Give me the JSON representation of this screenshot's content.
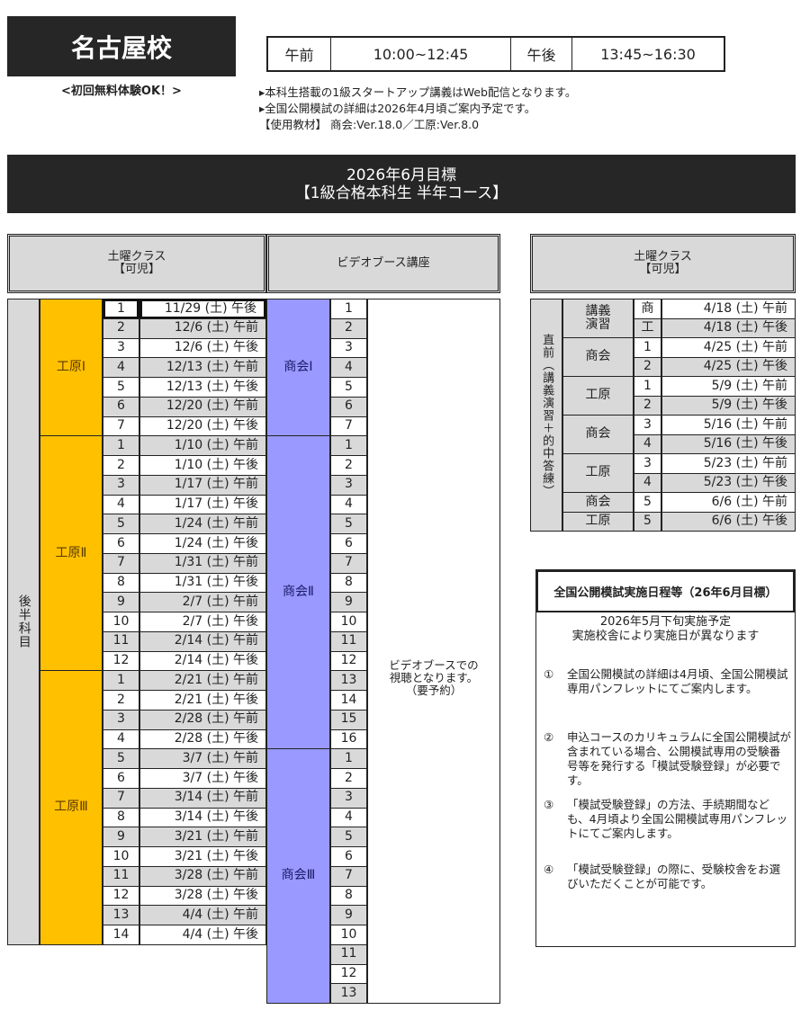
{
  "header": {
    "school": "名古屋校",
    "trial": "<初回無料体験OK！>",
    "times": {
      "am_label": "午前",
      "am": "10:00~12:45",
      "pm_label": "午後",
      "pm": "13:45~16:30"
    },
    "notes": [
      "▸本科生搭載の1級スタートアップ講義はWeb配信となります。",
      "▸全国公開模試の詳細は2026年4月頃ご案内予定です。",
      "【使用教材】 商会:Ver.18.0／工原:Ver.8.0"
    ]
  },
  "banner": {
    "line1": "2026年6月目標",
    "line2": "【1級合格本科生  半年コース】"
  },
  "left_table": {
    "header_class": "土曜クラス\n【可児】",
    "header_video": "ビデオブース講座",
    "period": "後半科目",
    "video_note": "ビデオブースでの\n視聴となります。\n（要予約）",
    "groups": [
      {
        "subject": "工原Ⅰ",
        "rows": [
          [
            "1",
            "11/29 (土) 午後"
          ],
          [
            "2",
            "12/6 (土) 午前"
          ],
          [
            "3",
            "12/6 (土) 午後"
          ],
          [
            "4",
            "12/13 (土) 午前"
          ],
          [
            "5",
            "12/13 (土) 午後"
          ],
          [
            "6",
            "12/20 (土) 午前"
          ],
          [
            "7",
            "12/20 (土) 午後"
          ]
        ]
      },
      {
        "subject": "工原Ⅱ",
        "rows": [
          [
            "1",
            "1/10 (土) 午前"
          ],
          [
            "2",
            "1/10 (土) 午後"
          ],
          [
            "3",
            "1/17 (土) 午前"
          ],
          [
            "4",
            "1/17 (土) 午後"
          ],
          [
            "5",
            "1/24 (土) 午前"
          ],
          [
            "6",
            "1/24 (土) 午後"
          ],
          [
            "7",
            "1/31 (土) 午前"
          ],
          [
            "8",
            "1/31 (土) 午後"
          ],
          [
            "9",
            "2/7 (土) 午前"
          ],
          [
            "10",
            "2/7 (土) 午後"
          ],
          [
            "11",
            "2/14 (土) 午前"
          ],
          [
            "12",
            "2/14 (土) 午後"
          ]
        ]
      },
      {
        "subject": "工原Ⅲ",
        "rows": [
          [
            "1",
            "2/21 (土) 午前"
          ],
          [
            "2",
            "2/21 (土) 午後"
          ],
          [
            "3",
            "2/28 (土) 午前"
          ],
          [
            "4",
            "2/28 (土) 午後"
          ],
          [
            "5",
            "3/7 (土) 午前"
          ],
          [
            "6",
            "3/7 (土) 午後"
          ],
          [
            "7",
            "3/14 (土) 午前"
          ],
          [
            "8",
            "3/14 (土) 午後"
          ],
          [
            "9",
            "3/21 (土) 午前"
          ],
          [
            "10",
            "3/21 (土) 午後"
          ],
          [
            "11",
            "3/28 (土) 午前"
          ],
          [
            "12",
            "3/28 (土) 午後"
          ],
          [
            "13",
            "4/4 (土) 午前"
          ],
          [
            "14",
            "4/4 (土) 午後"
          ]
        ]
      }
    ],
    "video_groups": [
      {
        "subject": "商会Ⅰ",
        "count": 7
      },
      {
        "subject": "商会Ⅱ",
        "count": 16
      },
      {
        "subject": "商会Ⅲ",
        "count": 13
      }
    ]
  },
  "right_table": {
    "header": "土曜クラス\n【可児】",
    "period": "直前（講義演習＋的中答練）",
    "groups": [
      {
        "subject": "講義\n演習",
        "rows": [
          [
            "商",
            "4/18 (土) 午前"
          ],
          [
            "工",
            "4/18 (土) 午後"
          ]
        ]
      },
      {
        "subject": "商会",
        "rows": [
          [
            "1",
            "4/25 (土) 午前"
          ],
          [
            "2",
            "4/25 (土) 午後"
          ]
        ]
      },
      {
        "subject": "工原",
        "rows": [
          [
            "1",
            "5/9 (土) 午前"
          ],
          [
            "2",
            "5/9 (土) 午後"
          ]
        ]
      },
      {
        "subject": "商会",
        "rows": [
          [
            "3",
            "5/16 (土) 午前"
          ],
          [
            "4",
            "5/16 (土) 午後"
          ]
        ]
      },
      {
        "subject": "工原",
        "rows": [
          [
            "3",
            "5/23 (土) 午前"
          ],
          [
            "4",
            "5/23 (土) 午後"
          ]
        ]
      },
      {
        "subject": "商会",
        "rows": [
          [
            "5",
            "6/6 (土) 午前"
          ]
        ]
      },
      {
        "subject": "工原",
        "rows": [
          [
            "5",
            "6/6 (土) 午後"
          ]
        ]
      }
    ]
  },
  "info": {
    "title": "全国公開模試実施日程等（26年6月目標）",
    "sub1": "2026年5月下旬実施予定",
    "sub2": "実施校舎により実施日が異なります",
    "items": [
      {
        "n": "①",
        "text": "全国公開模試の詳細は4月頃、全国公開模試専用パンフレットにてご案内します。"
      },
      {
        "n": "②",
        "text": "申込コースのカリキュラムに全国公開模試が含まれている場合、公開模試専用の受験番号等を発行する「模試受験登録」が必要です。"
      },
      {
        "n": "③",
        "text": "「模試受験登録」の方法、手続期間なども、4月頃より全国公開模試専用パンフレットにてご案内します。"
      },
      {
        "n": "④",
        "text": "「模試受験登録」の際に、受験校舎をお選びいただくことが可能です。"
      }
    ]
  },
  "colors": {
    "dark": "#262626",
    "orange": "#ffc000",
    "purple": "#9999ff",
    "gray": "#d9d9d9"
  }
}
